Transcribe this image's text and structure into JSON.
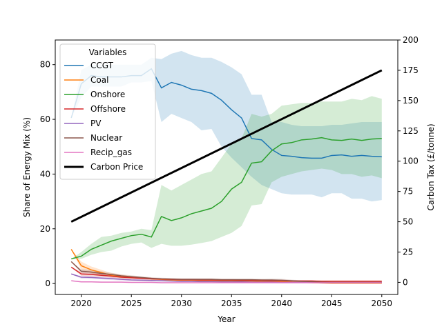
{
  "chart_data": {
    "type": "line",
    "xlabel": "Year",
    "ylabel": "Share of Energy Mix (%)",
    "y2label": "Carbon Tax (£/tonne)",
    "xlim": [
      2017.4,
      2051.6
    ],
    "ylim": [
      -4,
      89
    ],
    "y2lim": [
      -10,
      200
    ],
    "xticks": [
      2020,
      2025,
      2030,
      2035,
      2040,
      2045,
      2050
    ],
    "yticks": [
      0,
      20,
      40,
      60,
      80
    ],
    "y2ticks": [
      0,
      25,
      50,
      75,
      100,
      125,
      150,
      175,
      200
    ],
    "legend_title": "Variables",
    "legend_position": "upper-left",
    "x": [
      2019,
      2020,
      2021,
      2022,
      2023,
      2024,
      2025,
      2026,
      2027,
      2028,
      2029,
      2030,
      2031,
      2032,
      2033,
      2034,
      2035,
      2036,
      2037,
      2038,
      2039,
      2040,
      2041,
      2042,
      2043,
      2044,
      2045,
      2046,
      2047,
      2048,
      2049,
      2050
    ],
    "series": [
      {
        "name": "CCGT",
        "color": "#1f77b4",
        "values": [
          60.5,
          73,
          76,
          75.5,
          75.5,
          75.5,
          76,
          76,
          78.5,
          71.5,
          73.5,
          72.5,
          71,
          70.5,
          69.5,
          67,
          63.5,
          60.5,
          53,
          52.5,
          49,
          46.8,
          46.5,
          46,
          45.8,
          45.8,
          46.8,
          47,
          46.5,
          46.8,
          46.5,
          46.3
        ],
        "band_low": [
          60.5,
          68,
          72,
          72,
          72,
          72,
          73.5,
          73.5,
          74,
          59,
          62,
          60.5,
          59,
          56,
          56.5,
          50,
          46,
          42.5,
          39,
          36,
          34.5,
          33,
          32.5,
          32.5,
          32.5,
          31.5,
          33,
          33,
          31,
          31,
          30,
          30.5
        ],
        "band_high": [
          60.5,
          78,
          80,
          80,
          80,
          80,
          80,
          80,
          82.5,
          82,
          84,
          85,
          83.5,
          82.5,
          82.5,
          81,
          79,
          76.5,
          69,
          69,
          59,
          59,
          58,
          57.5,
          57.5,
          57.5,
          58,
          58,
          58.5,
          59,
          59,
          59
        ]
      },
      {
        "name": "Coal",
        "color": "#ff7f0e",
        "values": [
          12.5,
          6.5,
          5,
          4,
          3,
          2.5,
          2.2,
          2,
          1.7,
          1.5,
          1.3,
          1.2,
          1.2,
          1.1,
          1.1,
          1,
          1,
          0.9,
          0.9,
          0.8,
          0.8,
          0.7,
          0.5,
          0.4,
          0.3,
          0.2,
          0.1,
          0.1,
          0.1,
          0.1,
          0.1,
          0.1
        ],
        "band_low": [
          12.5,
          5,
          3.8,
          3,
          2.4,
          2,
          1.8,
          1.6,
          1.4,
          1.2,
          1,
          1,
          0.9,
          0.9,
          0.8,
          0.8,
          0.7,
          0.6,
          0.6,
          0.5,
          0.5,
          0.4,
          0.3,
          0.2,
          0.1,
          0,
          0,
          0,
          0,
          0,
          0,
          0
        ],
        "band_high": [
          12.5,
          8,
          6.2,
          5,
          3.8,
          3.2,
          2.8,
          2.4,
          2.1,
          1.8,
          1.6,
          1.5,
          1.5,
          1.4,
          1.4,
          1.3,
          1.3,
          1.2,
          1.2,
          1.1,
          1.1,
          1,
          0.8,
          0.6,
          0.5,
          0.4,
          0.3,
          0.3,
          0.3,
          0.3,
          0.3,
          0.3
        ]
      },
      {
        "name": "Onshore",
        "color": "#2ca02c",
        "values": [
          9,
          10,
          12.5,
          14,
          15.5,
          16.5,
          17.5,
          18,
          17,
          24.5,
          23,
          24,
          25.5,
          26.5,
          27.5,
          30,
          34.5,
          37,
          44,
          44.5,
          48.5,
          51,
          51.5,
          52.5,
          52.8,
          53.3,
          52.5,
          52.3,
          52.8,
          52.3,
          52.8,
          53
        ],
        "band_low": [
          9,
          9,
          10.5,
          11.5,
          12,
          13.5,
          14.5,
          15,
          13,
          14.5,
          13.8,
          13.8,
          14.2,
          14.8,
          15.5,
          17,
          18.5,
          21,
          28.5,
          29,
          37,
          39,
          40,
          41,
          41.5,
          42,
          41.5,
          40,
          40,
          39,
          39.5,
          38.5
        ],
        "band_high": [
          9,
          11.5,
          14.5,
          17,
          17.5,
          18.5,
          19,
          20,
          19.5,
          36,
          34,
          36,
          38,
          40,
          41,
          46,
          51,
          53,
          62,
          61,
          62,
          65,
          65.5,
          66,
          66,
          66.5,
          66.5,
          66.5,
          67.5,
          67,
          68.5,
          67.5
        ]
      },
      {
        "name": "Offshore",
        "color": "#d62728",
        "values": [
          6,
          3.5,
          3.3,
          3,
          2.7,
          2.3,
          2.1,
          1.9,
          1.7,
          1.6,
          1.5,
          1.4,
          1.4,
          1.3,
          1.3,
          1.2,
          1.2,
          1.1,
          1.1,
          1.1,
          1,
          1,
          0.9,
          0.9,
          0.9,
          0.8,
          0.8,
          0.8,
          0.8,
          0.8,
          0.8,
          0.8
        ],
        "band_low": [
          6,
          2.8,
          2.6,
          2.4,
          2.1,
          1.8,
          1.6,
          1.5,
          1.3,
          1.2,
          1.1,
          1,
          1,
          0.9,
          0.9,
          0.8,
          0.8,
          0.7,
          0.7,
          0.7,
          0.6,
          0.6,
          0.5,
          0.5,
          0.5,
          0.4,
          0.4,
          0.4,
          0.4,
          0.4,
          0.4,
          0.4
        ],
        "band_high": [
          6,
          4.2,
          4,
          3.7,
          3.3,
          2.8,
          2.6,
          2.3,
          2.1,
          2,
          1.9,
          1.8,
          1.8,
          1.7,
          1.7,
          1.6,
          1.6,
          1.5,
          1.5,
          1.5,
          1.4,
          1.4,
          1.3,
          1.3,
          1.3,
          1.2,
          1.2,
          1.2,
          1.2,
          1.2,
          1.2,
          1.2
        ]
      },
      {
        "name": "PV",
        "color": "#9467bd",
        "values": [
          3.5,
          2.3,
          2.2,
          2,
          1.8,
          1.5,
          1.3,
          1.2,
          1.1,
          1,
          0.9,
          0.8,
          0.8,
          0.7,
          0.7,
          0.6,
          0.6,
          0.6,
          0.5,
          0.5,
          0.5,
          0.4,
          0.4,
          0.4,
          0.4,
          0.3,
          0.3,
          0.3,
          0.3,
          0.3,
          0.3,
          0.3
        ],
        "band_low": [
          3.5,
          1.8,
          1.7,
          1.5,
          1.3,
          1.1,
          1,
          0.9,
          0.8,
          0.7,
          0.6,
          0.5,
          0.5,
          0.4,
          0.4,
          0.3,
          0.3,
          0.3,
          0.2,
          0.2,
          0.2,
          0.1,
          0.1,
          0.1,
          0.1,
          0,
          0,
          0,
          0,
          0,
          0,
          0
        ],
        "band_high": [
          3.5,
          2.8,
          2.7,
          2.5,
          2.3,
          1.9,
          1.6,
          1.5,
          1.4,
          1.3,
          1.2,
          1.1,
          1.1,
          1,
          1,
          0.9,
          0.9,
          0.9,
          0.8,
          0.8,
          0.8,
          0.7,
          0.7,
          0.7,
          0.7,
          0.6,
          0.6,
          0.6,
          0.6,
          0.6,
          0.6,
          0.6
        ]
      },
      {
        "name": "Nuclear",
        "color": "#8c564b",
        "values": [
          8,
          4.5,
          4.2,
          3.7,
          3.3,
          2.8,
          2.5,
          2.2,
          1.9,
          1.7,
          1.6,
          1.5,
          1.5,
          1.5,
          1.5,
          1.4,
          1.4,
          1.4,
          1.4,
          1.3,
          1.3,
          1.2,
          1,
          0.8,
          0.7,
          0.5,
          0.4,
          0.4,
          0.4,
          0.4,
          0.4,
          0.4
        ],
        "band_low": [
          8,
          3.8,
          3.5,
          3,
          2.7,
          2.3,
          2,
          1.8,
          1.5,
          1.3,
          1.2,
          1.1,
          1.1,
          1.1,
          1.1,
          1,
          1,
          1,
          1,
          0.9,
          0.9,
          0.8,
          0.6,
          0.4,
          0.3,
          0.1,
          0,
          0,
          0,
          0,
          0,
          0
        ],
        "band_high": [
          8,
          5.2,
          5,
          4.4,
          3.9,
          3.3,
          3,
          2.6,
          2.3,
          2.1,
          2,
          1.9,
          1.9,
          1.9,
          1.9,
          1.8,
          1.8,
          1.8,
          1.8,
          1.7,
          1.8,
          1.7,
          1.4,
          1.2,
          1.1,
          0.9,
          0.8,
          0.8,
          0.8,
          0.8,
          0.8,
          0.8
        ]
      },
      {
        "name": "Recip_gas",
        "color": "#e377c2",
        "values": [
          1,
          0.6,
          0.6,
          0.5,
          0.5,
          0.5,
          0.4,
          0.4,
          0.4,
          0.3,
          0.3,
          0.3,
          0.3,
          0.3,
          0.3,
          0.3,
          0.3,
          0.3,
          0.3,
          0.3,
          0.3,
          0.3,
          0.3,
          0.3,
          0.3,
          0.3,
          0.3,
          0.3,
          0.3,
          0.3,
          0.3,
          0.3
        ],
        "band_low": [
          1,
          0.4,
          0.4,
          0.3,
          0.3,
          0.3,
          0.2,
          0.2,
          0.2,
          0.1,
          0.1,
          0.1,
          0.1,
          0.1,
          0.1,
          0.1,
          0.1,
          0.1,
          0.1,
          0.1,
          0.1,
          0.1,
          0.1,
          0.1,
          0.1,
          0.1,
          0.1,
          0.1,
          0.1,
          0.1,
          0.1,
          0.1
        ],
        "band_high": [
          1,
          0.8,
          0.8,
          0.7,
          0.7,
          0.7,
          0.6,
          0.6,
          0.6,
          0.5,
          0.5,
          0.5,
          0.5,
          0.5,
          0.5,
          0.5,
          0.5,
          0.5,
          0.5,
          0.5,
          0.5,
          0.5,
          0.5,
          0.5,
          0.5,
          0.5,
          0.5,
          0.5,
          0.5,
          0.5,
          0.5,
          0.5
        ]
      }
    ],
    "secondary_series": {
      "name": "Carbon Price",
      "color": "#000000",
      "axis": "right",
      "x": [
        2019,
        2050
      ],
      "values": [
        50,
        175
      ]
    }
  }
}
